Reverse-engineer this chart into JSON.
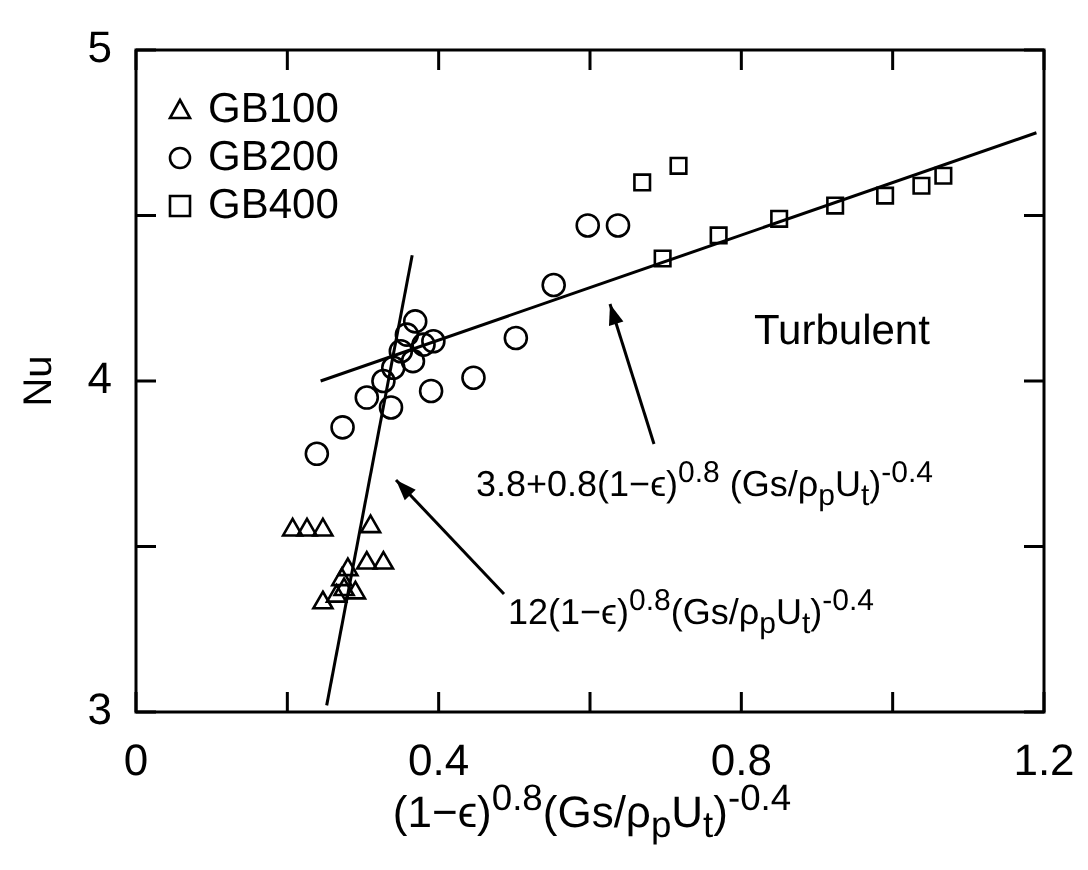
{
  "chart_data": {
    "type": "scatter",
    "xlabel": "(1−ϵ)$^{0.8}$(Gs/ρ$_{p}$U$_{t}$)$^{-0.4}$",
    "ylabel": "Nu",
    "xlim": [
      0,
      1.2
    ],
    "ylim": [
      3,
      5
    ],
    "xticks": [
      0,
      {
        "value": 0.2,
        "label": null
      },
      0.4,
      {
        "value": 0.6,
        "label": null
      },
      0.8,
      {
        "value": 1.0,
        "label": null
      },
      1.2
    ],
    "yticks": [
      3,
      {
        "value": 3.5,
        "label": null
      },
      4,
      {
        "value": 4.5,
        "label": null
      },
      5
    ],
    "legend": "top left",
    "annotations": [
      "Turbulent",
      "3.8+0.8(1−ϵ)$^{0.8}$ (Gs/ρ$_{p}$U$_{t}$)$^{-0.4}$",
      "12(1−ϵ)$^{0.8}$(Gs/ρ$_{p}$U$_{t}$)$^{-0.4}$"
    ],
    "series": [
      {
        "name": "GB100",
        "color": "#000000",
        "marker": "triangle",
        "x": [
          0.207,
          0.226,
          0.247,
          0.31,
          0.305,
          0.327,
          0.265,
          0.272,
          0.28,
          0.285,
          0.29,
          0.275,
          0.247
        ],
        "values": [
          3.55,
          3.55,
          3.55,
          3.56,
          3.45,
          3.45,
          3.35,
          3.4,
          3.43,
          null,
          3.36,
          3.37,
          3.33
        ]
      },
      {
        "name": "GB200",
        "color": "#000000",
        "marker": "circle",
        "x": [
          0.239,
          0.273,
          0.305,
          0.337,
          0.327,
          0.34,
          0.35,
          0.358,
          0.369,
          0.366,
          0.38,
          0.393,
          0.39,
          0.446,
          0.502,
          0.552,
          0.597,
          0.637
        ],
        "values": [
          3.78,
          3.86,
          3.95,
          3.92,
          4.0,
          4.04,
          4.09,
          4.14,
          4.18,
          4.06,
          4.11,
          4.12,
          3.97,
          4.01,
          4.13,
          4.29,
          4.47,
          4.47
        ]
      },
      {
        "name": "GB400",
        "color": "#000000",
        "marker": "square",
        "x": [
          0.669,
          0.717,
          0.696,
          0.77,
          0.85,
          0.924,
          0.99,
          1.038,
          1.067
        ],
        "values": [
          4.6,
          4.65,
          4.37,
          4.44,
          4.49,
          4.53,
          4.56,
          4.59,
          4.62
        ]
      },
      {
        "type": "line",
        "color": "#000000",
        "marker": "none",
        "x": [
          0.244,
          1.19
        ],
        "values": [
          4.0,
          4.75
        ]
      },
      {
        "type": "line",
        "color": "#000000",
        "marker": "none",
        "x": [
          0.252,
          0.365
        ],
        "values": [
          3.02,
          4.38
        ]
      }
    ]
  }
}
